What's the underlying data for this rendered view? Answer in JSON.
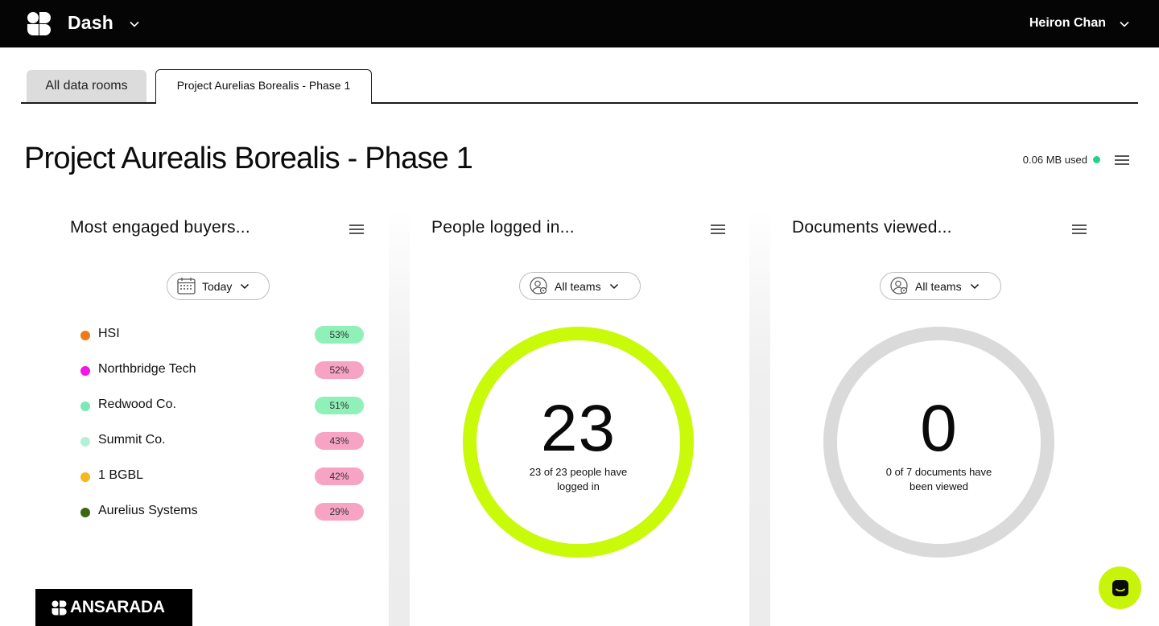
{
  "header": {
    "app_name": "Dash",
    "user_name": "Heiron Chan"
  },
  "tabs": [
    {
      "label": "All data rooms",
      "active": false
    },
    {
      "label": "Project Aurelias Borealis - Phase 1",
      "active": true
    }
  ],
  "page": {
    "title": "Project Aurealis Borealis - Phase 1",
    "storage": "0.06 MB used",
    "storage_status_color": "#1fd38a"
  },
  "panels": {
    "buyers": {
      "title": "Most engaged buyers...",
      "filter": "Today",
      "items": [
        {
          "name": "HSI",
          "pct": "53%",
          "dot": "#f07a18",
          "badge": "#8ff0b8"
        },
        {
          "name": "Northbridge Tech",
          "pct": "52%",
          "dot": "#f016e6",
          "badge": "#f7a3c4"
        },
        {
          "name": "Redwood Co.",
          "pct": "51%",
          "dot": "#7be8b6",
          "badge": "#8ff0b8"
        },
        {
          "name": "Summit Co.",
          "pct": "43%",
          "dot": "#b4f0d8",
          "badge": "#f7a3c4"
        },
        {
          "name": "1 BGBL",
          "pct": "42%",
          "dot": "#f4b71e",
          "badge": "#f7a3c4"
        },
        {
          "name": "Aurelius Systems",
          "pct": "29%",
          "dot": "#3d6613",
          "badge": "#f7a3c4"
        }
      ]
    },
    "logins": {
      "title": "People logged in...",
      "filter": "All teams",
      "value": "23",
      "caption_line1": "23 of 23 people have",
      "caption_line2": "logged in",
      "ring_color": "#c8fa0a",
      "fraction": 1.0
    },
    "documents": {
      "title": "Documents viewed...",
      "filter": "All teams",
      "value": "0",
      "caption_line1": "0 of 7 documents have",
      "caption_line2": "been viewed",
      "ring_color": "#dadada",
      "fraction": 0.0
    }
  },
  "footer": {
    "brand": "ANSARADA"
  }
}
